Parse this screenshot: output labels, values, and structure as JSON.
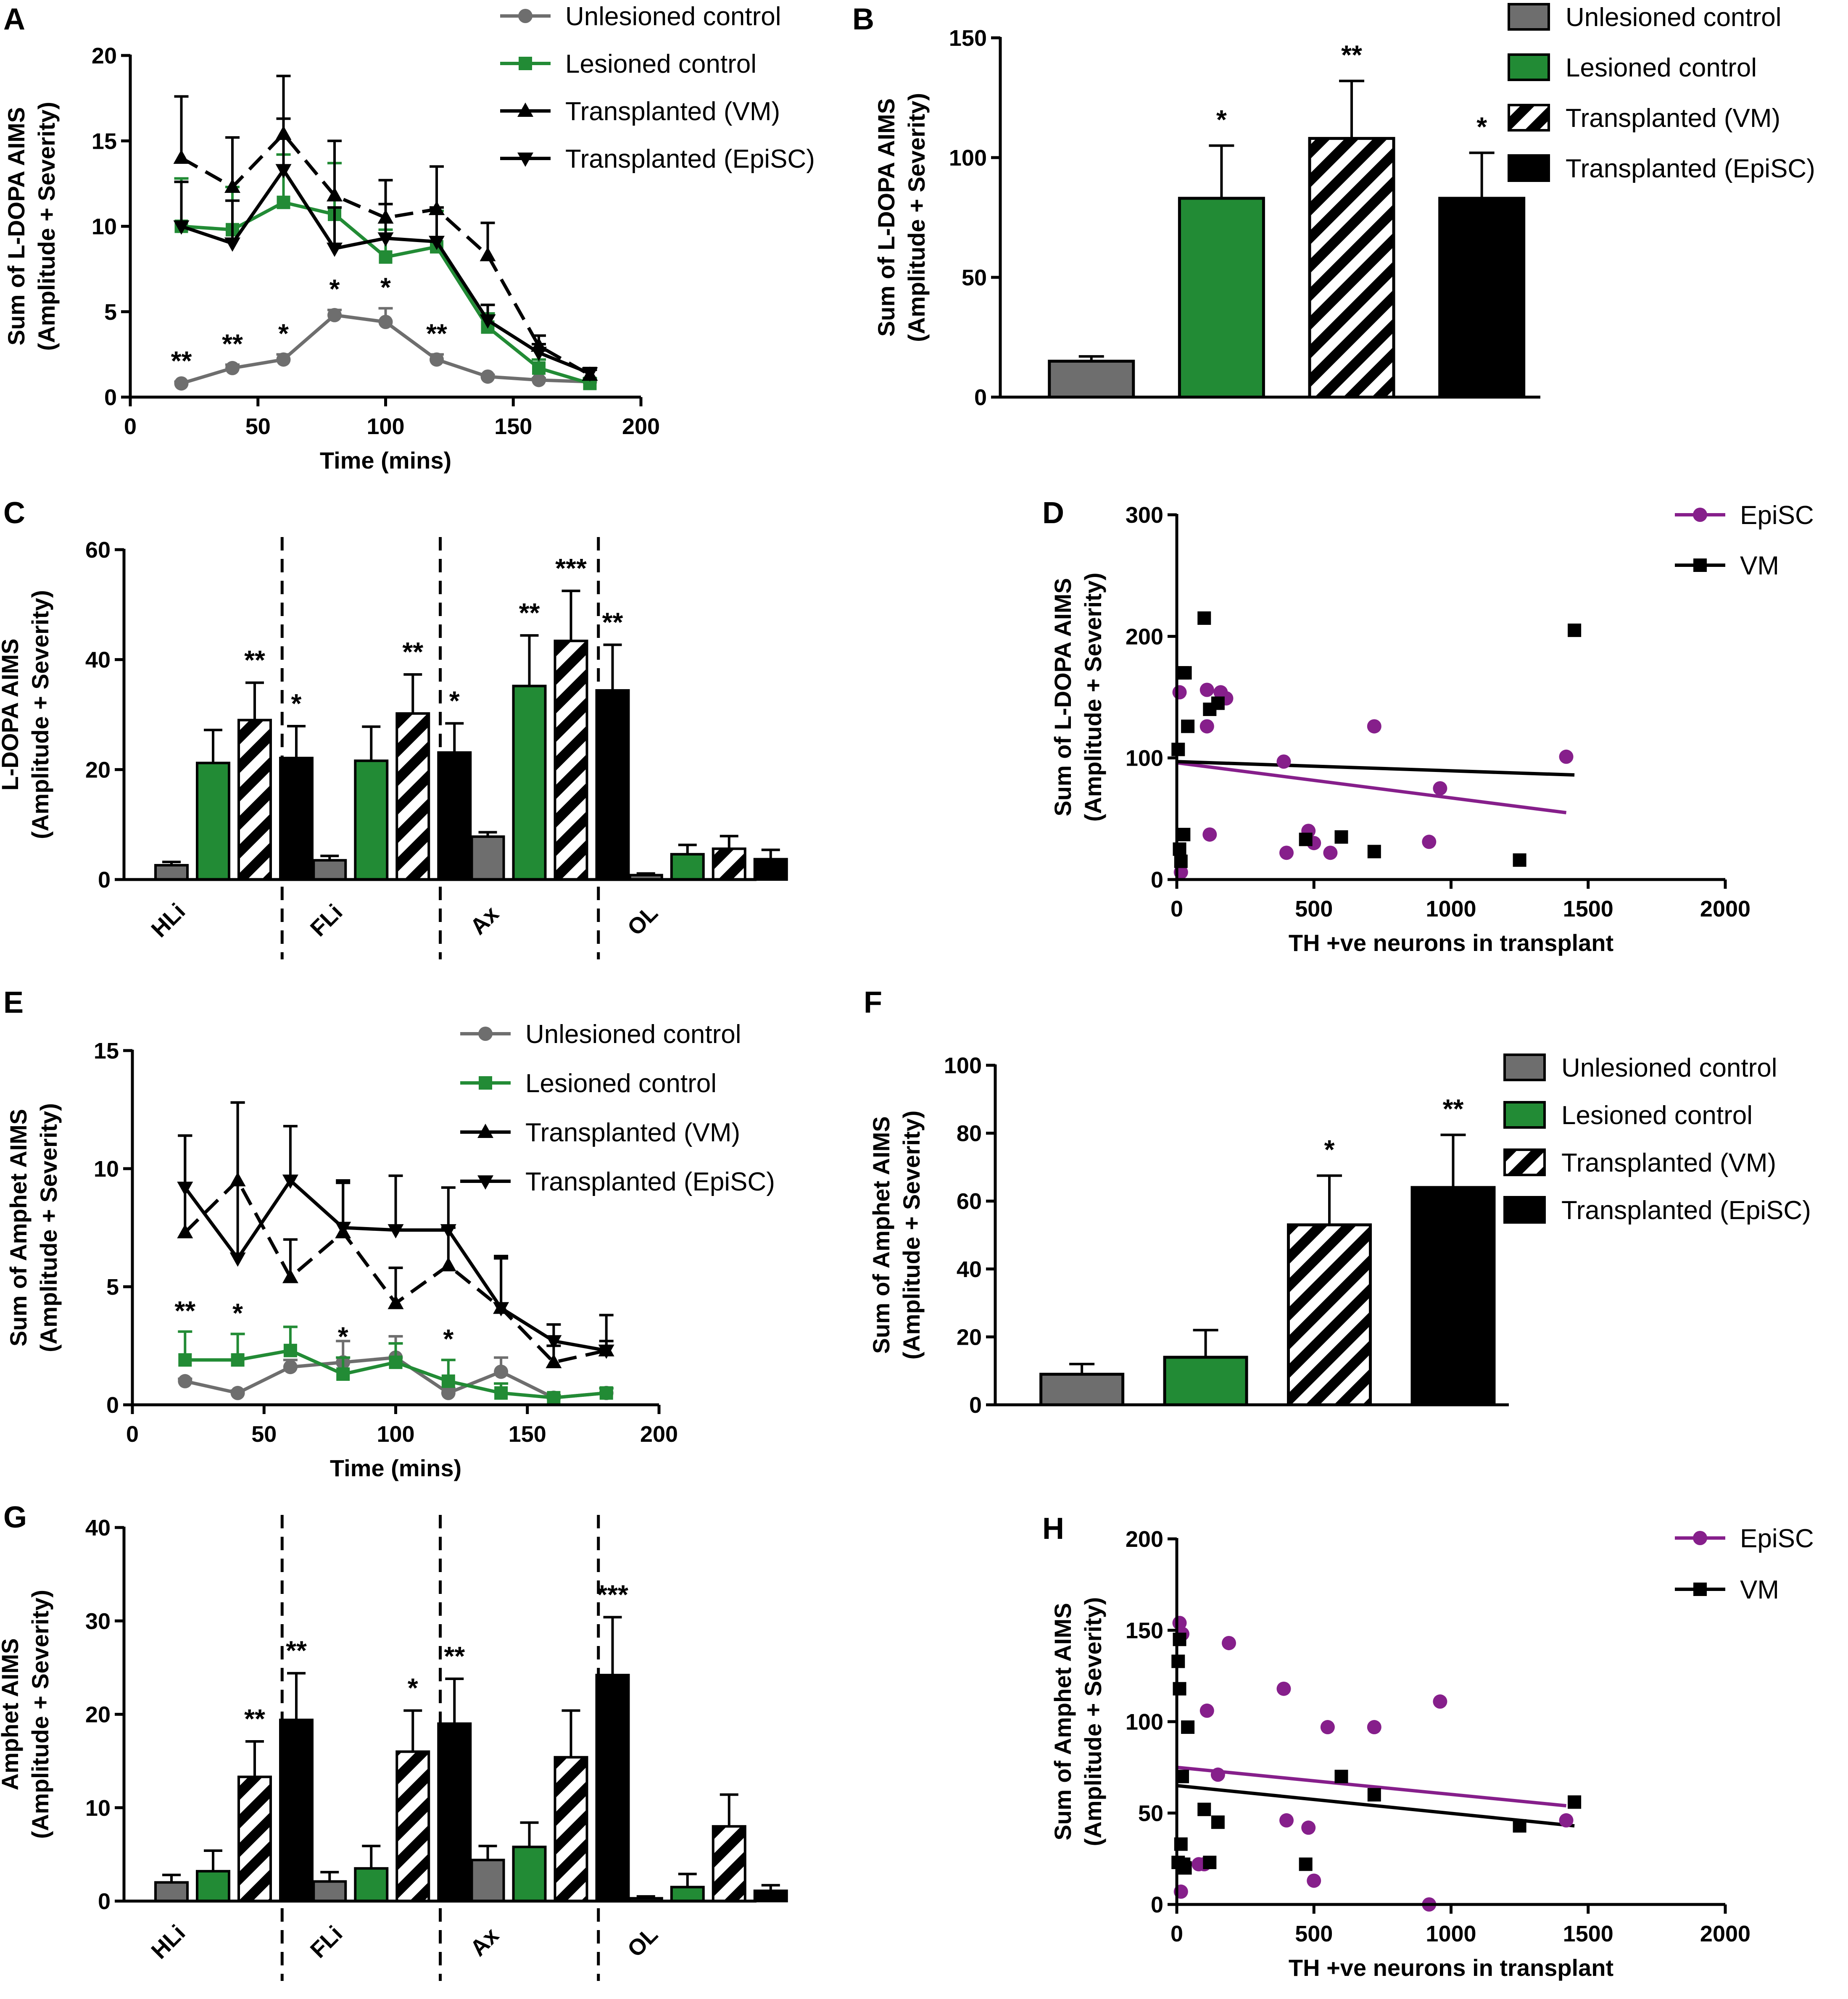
{
  "colors": {
    "grey": "#6e6e6e",
    "green": "#228b35",
    "purple": "#861f8b",
    "black": "#000000"
  },
  "chart_data": [
    {
      "panel": "A",
      "type": "line",
      "xlabel": "Time (mins)",
      "ylabel": "Sum of L-DOPA AIMS",
      "ylabel2": "(Amplitude + Severity)",
      "xlim": [
        0,
        200
      ],
      "ylim": [
        0,
        20
      ],
      "xticks": [
        "0",
        "50",
        "100",
        "150",
        "200"
      ],
      "yticks": [
        "0",
        "5",
        "10",
        "15",
        "20"
      ],
      "x": [
        20,
        40,
        60,
        80,
        100,
        120,
        140,
        160,
        180
      ],
      "series": [
        {
          "name": "Unlesioned control",
          "color": "#6e6e6e",
          "marker": "circle",
          "dash": false,
          "values": [
            0.8,
            1.7,
            2.2,
            4.8,
            4.4,
            2.2,
            1.2,
            1.0,
            0.9
          ],
          "errors": [
            0.1,
            0.2,
            0.3,
            0.3,
            0.8,
            0.3,
            0.1,
            0.1,
            0.1
          ],
          "stars": [
            "**",
            "**",
            "*",
            "*",
            "*",
            "**",
            "",
            "",
            ""
          ]
        },
        {
          "name": "Lesioned control",
          "color": "#228b35",
          "marker": "square",
          "dash": false,
          "values": [
            10,
            9.8,
            11.4,
            10.7,
            8.2,
            8.8,
            4.1,
            1.7,
            0.8
          ],
          "errors": [
            2.8,
            2.5,
            2.8,
            3.0,
            1.6,
            2.1,
            0.8,
            0.5,
            0.3
          ]
        },
        {
          "name": "Transplanted (VM)",
          "color": "#000000",
          "marker": "triangle",
          "dash": true,
          "values": [
            14,
            12.3,
            15.4,
            11.8,
            10.5,
            11,
            8.3,
            3.0,
            1.3
          ],
          "errors": [
            3.6,
            2.9,
            3.4,
            3.2,
            2.2,
            2.5,
            1.9,
            0.6,
            0.3
          ]
        },
        {
          "name": "Transplanted (EpiSC)",
          "color": "#000000",
          "marker": "tri-down",
          "dash": false,
          "values": [
            10,
            9,
            13.3,
            8.7,
            9.3,
            9.1,
            4.5,
            2.6,
            1.4
          ],
          "errors": [
            2.6,
            2.5,
            3.0,
            2.4,
            2.0,
            2.0,
            0.9,
            0.5,
            0.3
          ]
        }
      ]
    },
    {
      "panel": "B",
      "type": "bar",
      "ylabel": "Sum of L-DOPA AIMS",
      "ylabel2": "(Amplitude + Severity)",
      "ylim": [
        0,
        150
      ],
      "yticks": [
        "0",
        "50",
        "100",
        "150"
      ],
      "categories": [
        "Unlesioned control",
        "Lesioned control",
        "Transplanted (VM)",
        "Transplanted (EpiSC)"
      ],
      "values": [
        15,
        83,
        108,
        83
      ],
      "errors": [
        2,
        22,
        24,
        19
      ],
      "stars": [
        "",
        "*",
        "**",
        "*"
      ]
    },
    {
      "panel": "C",
      "type": "bar",
      "ylabel": "L-DOPA AIMS",
      "ylabel2": "(Amplitude + Severity)",
      "ylim": [
        0,
        60
      ],
      "yticks": [
        "0",
        "20",
        "40",
        "60"
      ],
      "categories": [
        "HLi",
        "FLi",
        "Ax",
        "OL"
      ],
      "series": [
        {
          "name": "Unlesioned control",
          "values": [
            2.6,
            3.5,
            7.8,
            0.8
          ],
          "errors": [
            0.6,
            0.8,
            0.8,
            0.3
          ],
          "stars": [
            "",
            "",
            "",
            ""
          ]
        },
        {
          "name": "Lesioned control",
          "values": [
            21.2,
            21.6,
            35.2,
            4.6
          ],
          "errors": [
            6,
            6.2,
            9.2,
            1.7
          ],
          "stars": [
            "",
            "",
            "**",
            ""
          ]
        },
        {
          "name": "Transplanted (VM)",
          "values": [
            29,
            30.2,
            43.4,
            5.6
          ],
          "errors": [
            6.8,
            7.1,
            9.1,
            2.3
          ],
          "stars": [
            "**",
            "**",
            "***",
            ""
          ]
        },
        {
          "name": "Transplanted (EpiSC)",
          "values": [
            22.1,
            23.1,
            34.4,
            3.7
          ],
          "errors": [
            5.8,
            5.3,
            8.3,
            1.7
          ],
          "stars": [
            "*",
            "*",
            "**",
            ""
          ]
        }
      ]
    },
    {
      "panel": "D",
      "type": "scatter",
      "xlabel": "TH +ve neurons in transplant",
      "ylabel": "Sum of L-DOPA AIMS",
      "ylabel2": "(Amplitude + Severity)",
      "xlim": [
        0,
        2000
      ],
      "ylim": [
        0,
        300
      ],
      "xticks": [
        "0",
        "500",
        "1000",
        "1500",
        "2000"
      ],
      "yticks": [
        "0",
        "100",
        "200",
        "300"
      ],
      "series": [
        {
          "name": "EpiSC",
          "color": "#861f8b",
          "marker": "circle",
          "x": [
            10,
            15,
            110,
            110,
            120,
            160,
            180,
            390,
            400,
            480,
            500,
            560,
            720,
            920,
            960,
            1420
          ],
          "y": [
            154,
            6,
            156,
            126,
            37,
            154,
            149,
            97,
            22,
            40,
            30,
            22,
            126,
            31,
            75,
            101
          ],
          "fit": [
            [
              0,
              96
            ],
            [
              1420,
              55
            ]
          ]
        },
        {
          "name": "VM",
          "color": "#000000",
          "marker": "square",
          "x": [
            5,
            10,
            15,
            20,
            25,
            30,
            40,
            100,
            120,
            150,
            470,
            600,
            720,
            1250,
            1450
          ],
          "y": [
            107,
            25,
            15,
            170,
            37,
            170,
            126,
            215,
            140,
            145,
            33,
            35,
            23,
            16,
            205
          ],
          "fit": [
            [
              0,
              97
            ],
            [
              1450,
              86
            ]
          ]
        }
      ]
    },
    {
      "panel": "E",
      "type": "line",
      "xlabel": "Time (mins)",
      "ylabel": "Sum of Amphet AIMS",
      "ylabel2": "(Amplitude + Severity)",
      "xlim": [
        0,
        200
      ],
      "ylim": [
        0,
        15
      ],
      "xticks": [
        "0",
        "50",
        "100",
        "150",
        "200"
      ],
      "yticks": [
        "0",
        "5",
        "10",
        "15"
      ],
      "x": [
        20,
        40,
        60,
        80,
        100,
        120,
        140,
        160,
        180
      ],
      "series": [
        {
          "name": "Unlesioned control",
          "color": "#6e6e6e",
          "marker": "circle",
          "dash": false,
          "values": [
            1.0,
            0.5,
            1.6,
            1.8,
            2.0,
            0.5,
            1.4,
            0.3,
            0.5
          ],
          "errors": [
            0.1,
            0.1,
            0.3,
            0.9,
            0.9,
            0.2,
            0.6,
            0.1,
            0.2
          ]
        },
        {
          "name": "Lesioned control",
          "color": "#228b35",
          "marker": "square",
          "dash": false,
          "values": [
            1.9,
            1.9,
            2.3,
            1.3,
            1.8,
            1.0,
            0.5,
            0.3,
            0.5
          ],
          "errors": [
            1.2,
            1.1,
            1.0,
            0.7,
            0.8,
            0.9,
            0.4,
            0.1,
            0.2
          ],
          "stars": [
            "**",
            "*",
            "",
            "*",
            "",
            "*",
            "",
            "",
            ""
          ]
        },
        {
          "name": "Transplanted (VM)",
          "color": "#000000",
          "marker": "triangle",
          "dash": true,
          "values": [
            7.3,
            9.5,
            5.4,
            7.3,
            4.3,
            5.9,
            4.1,
            1.8,
            2.3
          ],
          "errors": [
            4.1,
            3.3,
            1.6,
            2.1,
            1.5,
            1.6,
            2.1,
            0.7,
            0.4
          ]
        },
        {
          "name": "Transplanted (EpiSC)",
          "color": "#000000",
          "marker": "tri-down",
          "dash": false,
          "values": [
            9.2,
            6.2,
            9.5,
            7.5,
            7.4,
            7.4,
            4.1,
            2.7,
            2.3
          ],
          "errors": [
            2.2,
            6.6,
            2.3,
            2.0,
            2.3,
            1.8,
            2.2,
            0.7,
            1.5
          ]
        }
      ]
    },
    {
      "panel": "F",
      "type": "bar",
      "ylabel": "Sum of Amphet AIMS",
      "ylabel2": "(Amplitude + Severity)",
      "ylim": [
        0,
        100
      ],
      "yticks": [
        "0",
        "20",
        "40",
        "60",
        "80",
        "100"
      ],
      "categories": [
        "Unlesioned control",
        "Lesioned control",
        "Transplanted (VM)",
        "Transplanted (EpiSC)"
      ],
      "values": [
        9,
        14,
        53,
        64
      ],
      "errors": [
        3,
        8,
        14.5,
        15.5
      ],
      "stars": [
        "",
        "",
        "*",
        "**"
      ]
    },
    {
      "panel": "G",
      "type": "bar",
      "ylabel": "Amphet AIMS",
      "ylabel2": "(Amplitude + Severity)",
      "ylim": [
        0,
        40
      ],
      "yticks": [
        "0",
        "10",
        "20",
        "30",
        "40"
      ],
      "categories": [
        "HLi",
        "FLi",
        "Ax",
        "OL"
      ],
      "series": [
        {
          "name": "Unlesioned control",
          "values": [
            2,
            2.1,
            4.4,
            0.3
          ],
          "errors": [
            0.8,
            1.0,
            1.5,
            0.2
          ],
          "stars": [
            "",
            "",
            "",
            ""
          ]
        },
        {
          "name": "Lesioned control",
          "values": [
            3.2,
            3.5,
            5.8,
            1.5
          ],
          "errors": [
            2.2,
            2.4,
            2.6,
            1.4
          ],
          "stars": [
            "",
            "",
            "",
            ""
          ]
        },
        {
          "name": "Transplanted (VM)",
          "values": [
            13.3,
            16,
            15.4,
            8
          ],
          "errors": [
            3.8,
            4.4,
            5.0,
            3.4
          ],
          "stars": [
            "**",
            "*",
            "",
            ""
          ]
        },
        {
          "name": "Transplanted (EpiSC)",
          "values": [
            19.4,
            19,
            24.2,
            1.1
          ],
          "errors": [
            5,
            4.8,
            6.2,
            0.6
          ],
          "stars": [
            "**",
            "**",
            "***",
            ""
          ]
        }
      ]
    },
    {
      "panel": "H",
      "type": "scatter",
      "xlabel": "TH +ve neurons in transplant",
      "ylabel": "Sum of Amphet AIMS",
      "ylabel2": "(Amplitude + Severity)",
      "xlim": [
        0,
        2000
      ],
      "ylim": [
        0,
        200
      ],
      "xticks": [
        "0",
        "500",
        "1000",
        "1500",
        "2000"
      ],
      "yticks": [
        "0",
        "50",
        "100",
        "150",
        "200"
      ],
      "series": [
        {
          "name": "EpiSC",
          "color": "#861f8b",
          "marker": "circle",
          "x": [
            10,
            15,
            20,
            80,
            100,
            110,
            150,
            190,
            390,
            400,
            480,
            500,
            550,
            720,
            920,
            960,
            1420
          ],
          "y": [
            154,
            7,
            148,
            22,
            22,
            106,
            71,
            143,
            118,
            46,
            42,
            13,
            97,
            97,
            0,
            111,
            46
          ],
          "fit": [
            [
              0,
              75
            ],
            [
              1420,
              54
            ]
          ]
        },
        {
          "name": "VM",
          "color": "#000000",
          "marker": "square",
          "x": [
            5,
            5,
            10,
            10,
            15,
            20,
            25,
            30,
            40,
            100,
            120,
            150,
            470,
            600,
            720,
            1250,
            1450
          ],
          "y": [
            23,
            133,
            145,
            118,
            33,
            70,
            22,
            20,
            97,
            52,
            23,
            45,
            22,
            70,
            60,
            43,
            56
          ],
          "fit": [
            [
              0,
              65
            ],
            [
              1450,
              43
            ]
          ]
        }
      ]
    }
  ]
}
